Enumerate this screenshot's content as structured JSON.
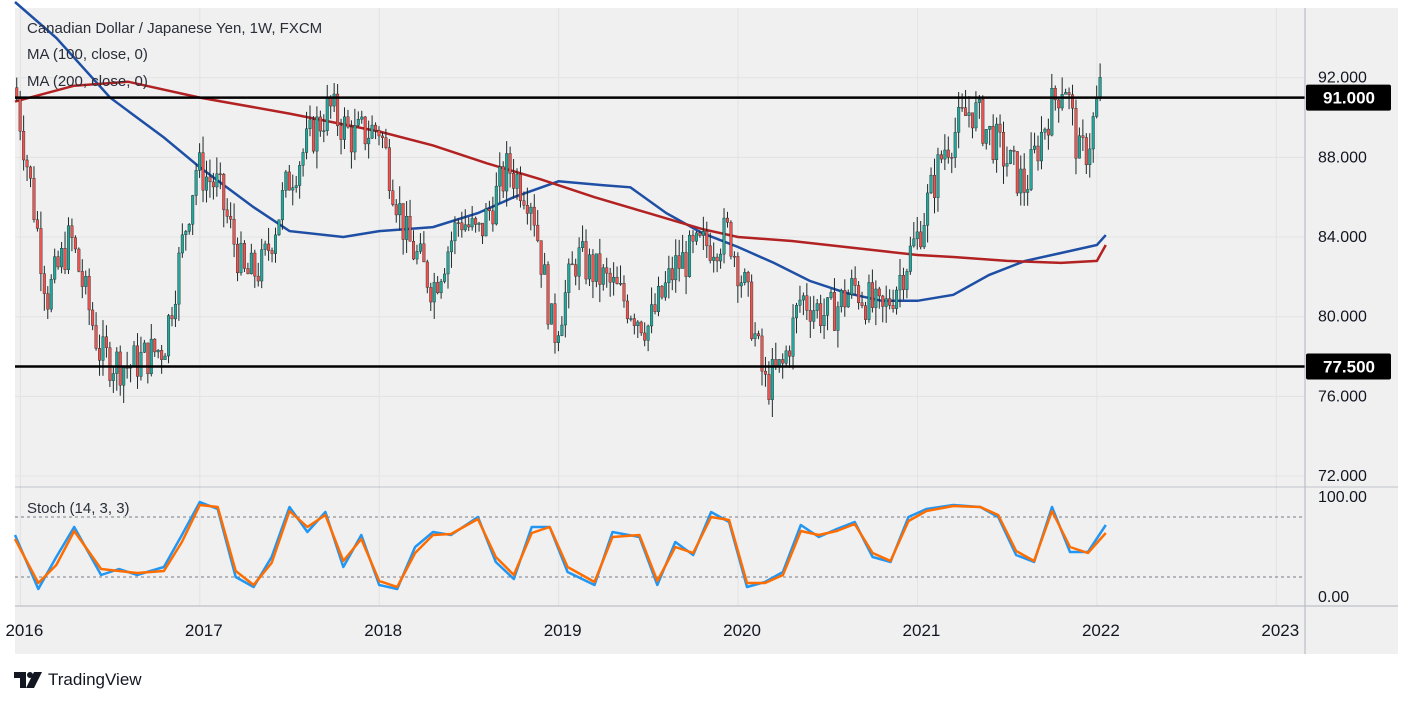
{
  "chart_data": [
    {
      "type": "candlestick",
      "title": "Canadian Dollar / Japanese Yen, 1W, FXCM",
      "indicators": [
        "MA (100, close, 0)",
        "MA (200, close, 0)"
      ],
      "y_ticks": [
        "72.000",
        "76.000",
        "80.000",
        "84.000",
        "88.000",
        "92.000"
      ],
      "ylim": [
        71.5,
        95.5
      ],
      "xlim": [
        2015.97,
        2023.16
      ],
      "x_ticks": [
        {
          "label": "2016",
          "x": 2016
        },
        {
          "label": "2017",
          "x": 2017
        },
        {
          "label": "2018",
          "x": 2018
        },
        {
          "label": "2019",
          "x": 2019
        },
        {
          "label": "2020",
          "x": 2020
        },
        {
          "label": "2021",
          "x": 2021
        },
        {
          "label": "2022",
          "x": 2022
        },
        {
          "label": "2023",
          "x": 2023
        }
      ],
      "horizontal_levels": [
        {
          "label": "91.000",
          "value": 91.0,
          "color": "#000000"
        },
        {
          "label": "77.500",
          "value": 77.5,
          "color": "#000000"
        }
      ],
      "price_anchors": {
        "x": [
          2015.97,
          2016.05,
          2016.15,
          2016.28,
          2016.45,
          2016.6,
          2016.8,
          2016.98,
          2017.1,
          2017.25,
          2017.35,
          2017.5,
          2017.65,
          2017.72,
          2017.85,
          2018.0,
          2018.15,
          2018.3,
          2018.45,
          2018.55,
          2018.72,
          2018.85,
          2018.97,
          2019.1,
          2019.3,
          2019.5,
          2019.65,
          2019.8,
          2019.95,
          2020.05,
          2020.15,
          2020.25,
          2020.35,
          2020.5,
          2020.65,
          2020.8,
          2021.0,
          2021.15,
          2021.3,
          2021.45,
          2021.6,
          2021.72,
          2021.82,
          2021.9,
          2021.95,
          2022.02
        ],
        "close": [
          91.5,
          87,
          81,
          84,
          78,
          77.5,
          78.5,
          87.5,
          86.5,
          82,
          82.5,
          87,
          89.5,
          90.5,
          89,
          89.5,
          84,
          81.5,
          85,
          84,
          87.5,
          86,
          79,
          83,
          81.5,
          79.5,
          82.5,
          83.5,
          84.2,
          81,
          76.5,
          77.5,
          81,
          80,
          81.5,
          80,
          84,
          88.5,
          90.5,
          88.5,
          86.5,
          90,
          92,
          88,
          88.5,
          91.5
        ]
      },
      "series": [
        {
          "name": "MA (100, close, 0)",
          "color": "#1e4fa5",
          "x": [
            2015.97,
            2016.2,
            2016.5,
            2016.8,
            2017.0,
            2017.3,
            2017.5,
            2017.8,
            2018.0,
            2018.3,
            2018.55,
            2018.75,
            2019.0,
            2019.25,
            2019.4,
            2019.6,
            2019.8,
            2020.0,
            2020.2,
            2020.4,
            2020.6,
            2020.8,
            2021.0,
            2021.2,
            2021.4,
            2021.6,
            2021.8,
            2022.0,
            2022.05
          ],
          "values": [
            95.8,
            94,
            91,
            89,
            87.5,
            85.5,
            84.3,
            84,
            84.3,
            84.5,
            85.2,
            86,
            86.8,
            86.6,
            86.5,
            85.2,
            84.2,
            83.5,
            82.7,
            81.8,
            81.2,
            80.8,
            80.8,
            81.1,
            82.1,
            82.8,
            83.2,
            83.6,
            84.1
          ]
        },
        {
          "name": "MA (200, close, 0)",
          "color": "#b22222",
          "x": [
            2015.97,
            2016.3,
            2016.6,
            2017.0,
            2017.5,
            2018.0,
            2018.3,
            2018.6,
            2018.9,
            2019.2,
            2019.5,
            2019.8,
            2020.0,
            2020.3,
            2020.6,
            2020.8,
            2021.0,
            2021.2,
            2021.5,
            2021.8,
            2022.0,
            2022.05
          ],
          "values": [
            90.8,
            91.6,
            91.8,
            91.0,
            90.2,
            89.3,
            88.6,
            87.7,
            86.9,
            86.0,
            85.2,
            84.4,
            84.0,
            83.8,
            83.5,
            83.3,
            83.1,
            83.0,
            82.8,
            82.7,
            82.8,
            83.6
          ]
        }
      ]
    },
    {
      "type": "line",
      "title": "Stoch (14, 3, 3)",
      "y_ticks": [
        "0.00",
        "100.00"
      ],
      "ylim": [
        0,
        100
      ],
      "reference_levels": [
        80,
        20
      ],
      "series": [
        {
          "name": "%K",
          "color": "#2196f3",
          "x": [
            2015.97,
            2016.1,
            2016.2,
            2016.3,
            2016.45,
            2016.55,
            2016.65,
            2016.8,
            2016.9,
            2017.0,
            2017.1,
            2017.2,
            2017.3,
            2017.4,
            2017.5,
            2017.6,
            2017.7,
            2017.8,
            2017.9,
            2018.0,
            2018.1,
            2018.2,
            2018.3,
            2018.4,
            2018.55,
            2018.65,
            2018.75,
            2018.85,
            2018.95,
            2019.05,
            2019.2,
            2019.3,
            2019.45,
            2019.55,
            2019.65,
            2019.75,
            2019.85,
            2019.95,
            2020.05,
            2020.15,
            2020.25,
            2020.35,
            2020.45,
            2020.55,
            2020.65,
            2020.75,
            2020.85,
            2020.95,
            2021.05,
            2021.2,
            2021.35,
            2021.45,
            2021.55,
            2021.65,
            2021.75,
            2021.85,
            2021.95,
            2022.05
          ],
          "values": [
            62,
            8,
            40,
            70,
            22,
            28,
            22,
            30,
            62,
            95,
            88,
            20,
            10,
            40,
            90,
            65,
            85,
            30,
            62,
            12,
            8,
            50,
            65,
            62,
            80,
            35,
            18,
            70,
            70,
            25,
            12,
            65,
            60,
            12,
            55,
            42,
            85,
            75,
            10,
            15,
            25,
            72,
            60,
            68,
            75,
            40,
            35,
            80,
            88,
            92,
            90,
            80,
            42,
            35,
            90,
            45,
            45,
            72
          ]
        },
        {
          "name": "%D",
          "color": "#ff6d00",
          "x": [
            2015.97,
            2016.1,
            2016.2,
            2016.3,
            2016.45,
            2016.55,
            2016.65,
            2016.8,
            2016.9,
            2017.0,
            2017.1,
            2017.2,
            2017.3,
            2017.4,
            2017.5,
            2017.6,
            2017.7,
            2017.8,
            2017.9,
            2018.0,
            2018.1,
            2018.2,
            2018.3,
            2018.4,
            2018.55,
            2018.65,
            2018.75,
            2018.85,
            2018.95,
            2019.05,
            2019.2,
            2019.3,
            2019.45,
            2019.55,
            2019.65,
            2019.75,
            2019.85,
            2019.95,
            2020.05,
            2020.15,
            2020.25,
            2020.35,
            2020.45,
            2020.55,
            2020.65,
            2020.75,
            2020.85,
            2020.95,
            2021.05,
            2021.2,
            2021.35,
            2021.45,
            2021.55,
            2021.65,
            2021.75,
            2021.85,
            2021.95,
            2022.05
          ],
          "values": [
            58,
            14,
            32,
            66,
            28,
            26,
            24,
            26,
            55,
            92,
            90,
            26,
            12,
            34,
            86,
            70,
            82,
            36,
            58,
            16,
            10,
            44,
            62,
            63,
            78,
            40,
            22,
            64,
            70,
            30,
            15,
            60,
            62,
            16,
            50,
            44,
            80,
            77,
            14,
            14,
            22,
            66,
            62,
            66,
            73,
            44,
            36,
            76,
            86,
            91,
            90,
            82,
            46,
            36,
            86,
            50,
            44,
            64
          ]
        }
      ]
    }
  ],
  "colors": {
    "bull": "#26a69a",
    "bear": "#ef5350",
    "ma100": "#1e4fa5",
    "ma200": "#b22222",
    "stoch_k": "#2196f3",
    "stoch_d": "#ff6d00",
    "pane_bg": "#f0f0f0",
    "text": "#131722"
  },
  "branding": {
    "logo_icon": "tradingview-logo-icon",
    "logo_text": "TradingView"
  }
}
